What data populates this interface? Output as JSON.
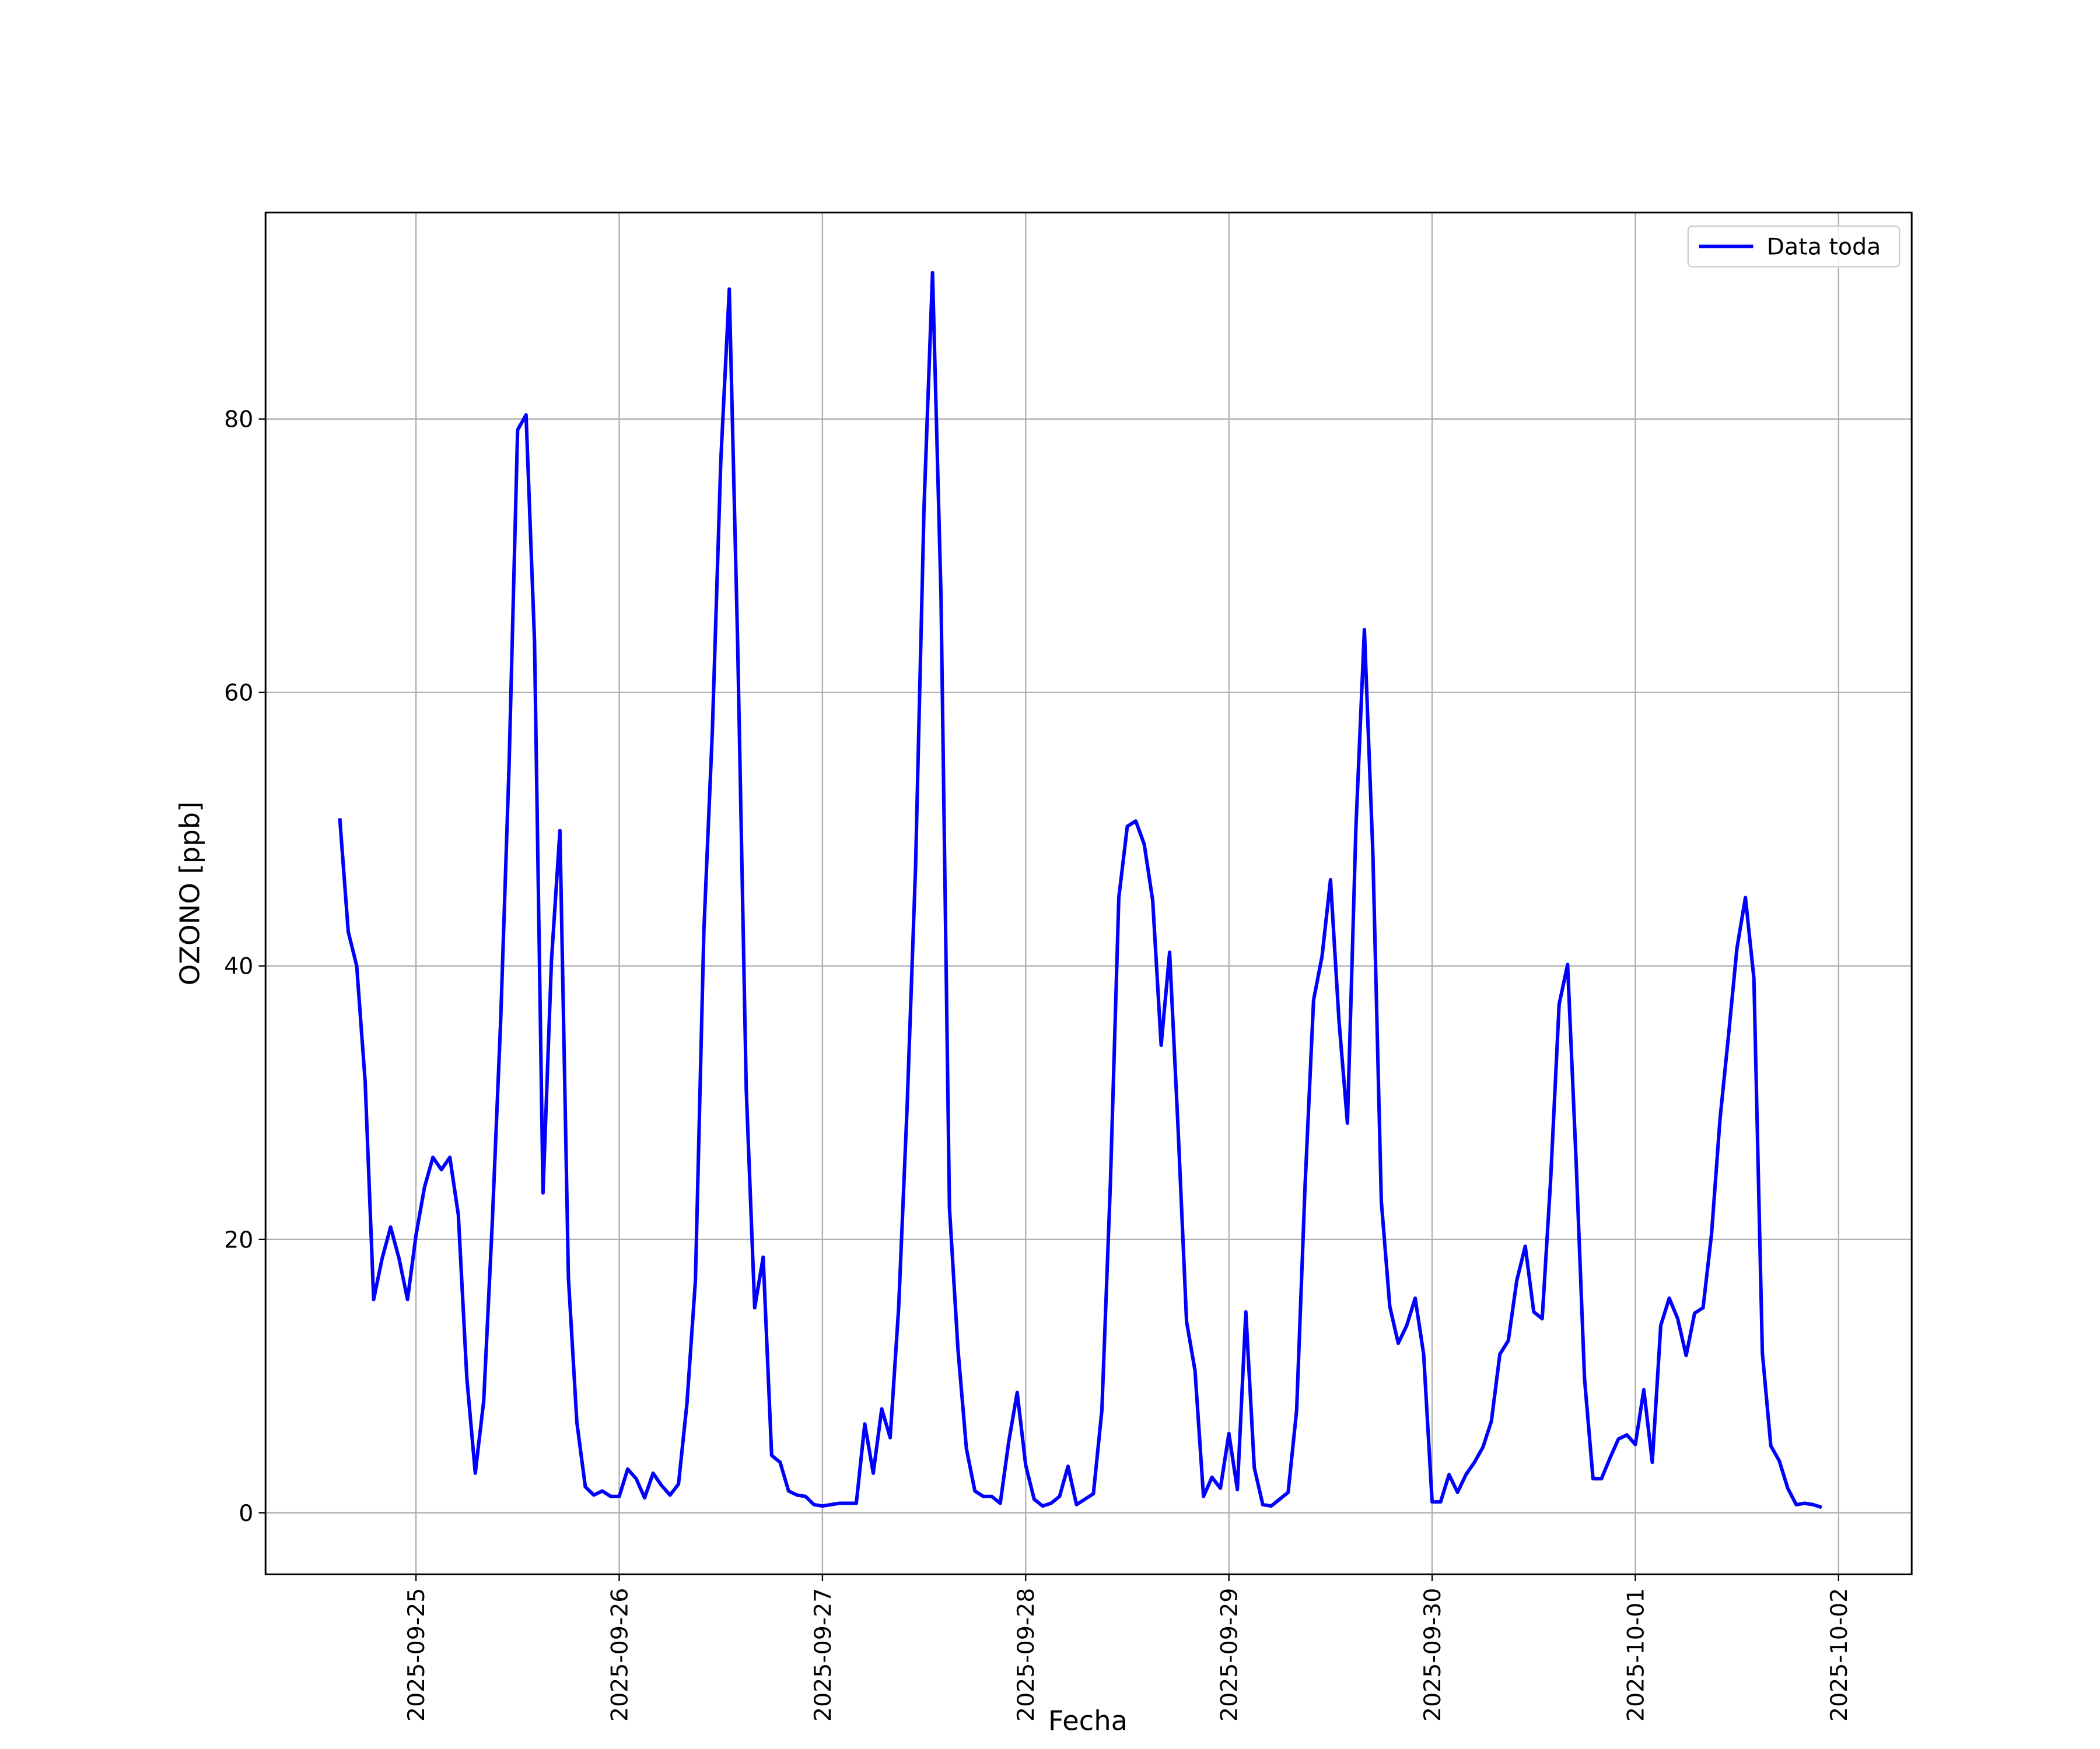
{
  "chart_data": {
    "type": "line",
    "x_label": "Fecha",
    "y_label": "OZONO [ppb]",
    "grid": true,
    "legend": "upper right",
    "xlim": [
      "2025-09-24T06:14Z",
      "2025-10-02T08:38Z"
    ],
    "xticks": [
      "2025-09-25",
      "2025-09-26",
      "2025-09-27",
      "2025-09-28",
      "2025-09-29",
      "2025-09-30",
      "2025-10-01",
      "2025-10-02"
    ],
    "ylim": [
      -4.5,
      95.1
    ],
    "yticks": [
      0,
      20,
      40,
      60,
      80
    ],
    "x": [
      "2025-09-24T15:00Z",
      "2025-09-24T16:00Z",
      "2025-09-24T17:00Z",
      "2025-09-24T18:00Z",
      "2025-09-24T19:00Z",
      "2025-09-24T20:00Z",
      "2025-09-24T21:00Z",
      "2025-09-24T22:00Z",
      "2025-09-24T23:00Z",
      "2025-09-25T00:00Z",
      "2025-09-25T01:00Z",
      "2025-09-25T02:00Z",
      "2025-09-25T03:00Z",
      "2025-09-25T04:00Z",
      "2025-09-25T05:00Z",
      "2025-09-25T06:00Z",
      "2025-09-25T07:00Z",
      "2025-09-25T08:00Z",
      "2025-09-25T09:00Z",
      "2025-09-25T10:00Z",
      "2025-09-25T11:00Z",
      "2025-09-25T12:00Z",
      "2025-09-25T13:00Z",
      "2025-09-25T14:00Z",
      "2025-09-25T15:00Z",
      "2025-09-25T16:00Z",
      "2025-09-25T17:00Z",
      "2025-09-25T18:00Z",
      "2025-09-25T19:00Z",
      "2025-09-25T20:00Z",
      "2025-09-25T21:00Z",
      "2025-09-25T22:00Z",
      "2025-09-25T23:00Z",
      "2025-09-26T00:00Z",
      "2025-09-26T01:00Z",
      "2025-09-26T02:00Z",
      "2025-09-26T03:00Z",
      "2025-09-26T04:00Z",
      "2025-09-26T05:00Z",
      "2025-09-26T06:00Z",
      "2025-09-26T07:00Z",
      "2025-09-26T08:00Z",
      "2025-09-26T09:00Z",
      "2025-09-26T10:00Z",
      "2025-09-26T11:00Z",
      "2025-09-26T12:00Z",
      "2025-09-26T13:00Z",
      "2025-09-26T14:00Z",
      "2025-09-26T15:00Z",
      "2025-09-26T16:00Z",
      "2025-09-26T17:00Z",
      "2025-09-26T18:00Z",
      "2025-09-26T19:00Z",
      "2025-09-26T20:00Z",
      "2025-09-26T21:00Z",
      "2025-09-26T22:00Z",
      "2025-09-26T23:00Z",
      "2025-09-27T00:00Z",
      "2025-09-27T01:00Z",
      "2025-09-27T02:00Z",
      "2025-09-27T03:00Z",
      "2025-09-27T04:00Z",
      "2025-09-27T05:00Z",
      "2025-09-27T06:00Z",
      "2025-09-27T07:00Z",
      "2025-09-27T08:00Z",
      "2025-09-27T09:00Z",
      "2025-09-27T10:00Z",
      "2025-09-27T11:00Z",
      "2025-09-27T12:00Z",
      "2025-09-27T13:00Z",
      "2025-09-27T14:00Z",
      "2025-09-27T15:00Z",
      "2025-09-27T16:00Z",
      "2025-09-27T17:00Z",
      "2025-09-27T18:00Z",
      "2025-09-27T19:00Z",
      "2025-09-27T20:00Z",
      "2025-09-27T21:00Z",
      "2025-09-27T22:00Z",
      "2025-09-27T23:00Z",
      "2025-09-28T00:00Z",
      "2025-09-28T01:00Z",
      "2025-09-28T02:00Z",
      "2025-09-28T03:00Z",
      "2025-09-28T04:00Z",
      "2025-09-28T05:00Z",
      "2025-09-28T06:00Z",
      "2025-09-28T07:00Z",
      "2025-09-28T08:00Z",
      "2025-09-28T09:00Z",
      "2025-09-28T10:00Z",
      "2025-09-28T11:00Z",
      "2025-09-28T12:00Z",
      "2025-09-28T13:00Z",
      "2025-09-28T14:00Z",
      "2025-09-28T15:00Z",
      "2025-09-28T16:00Z",
      "2025-09-28T17:00Z",
      "2025-09-28T18:00Z",
      "2025-09-28T19:00Z",
      "2025-09-28T20:00Z",
      "2025-09-28T21:00Z",
      "2025-09-28T22:00Z",
      "2025-09-28T23:00Z",
      "2025-09-29T00:00Z",
      "2025-09-29T01:00Z",
      "2025-09-29T02:00Z",
      "2025-09-29T03:00Z",
      "2025-09-29T04:00Z",
      "2025-09-29T05:00Z",
      "2025-09-29T06:00Z",
      "2025-09-29T07:00Z",
      "2025-09-29T08:00Z",
      "2025-09-29T09:00Z",
      "2025-09-29T10:00Z",
      "2025-09-29T11:00Z",
      "2025-09-29T12:00Z",
      "2025-09-29T13:00Z",
      "2025-09-29T14:00Z",
      "2025-09-29T15:00Z",
      "2025-09-29T16:00Z",
      "2025-09-29T17:00Z",
      "2025-09-29T18:00Z",
      "2025-09-29T19:00Z",
      "2025-09-29T20:00Z",
      "2025-09-29T21:00Z",
      "2025-09-29T22:00Z",
      "2025-09-29T23:00Z",
      "2025-09-30T00:00Z",
      "2025-09-30T01:00Z",
      "2025-09-30T02:00Z",
      "2025-09-30T03:00Z",
      "2025-09-30T04:00Z",
      "2025-09-30T05:00Z",
      "2025-09-30T06:00Z",
      "2025-09-30T07:00Z",
      "2025-09-30T08:00Z",
      "2025-09-30T09:00Z",
      "2025-09-30T10:00Z",
      "2025-09-30T11:00Z",
      "2025-09-30T12:00Z",
      "2025-09-30T13:00Z",
      "2025-09-30T14:00Z",
      "2025-09-30T15:00Z",
      "2025-09-30T16:00Z",
      "2025-09-30T17:00Z",
      "2025-09-30T18:00Z",
      "2025-09-30T19:00Z",
      "2025-09-30T20:00Z",
      "2025-09-30T21:00Z",
      "2025-09-30T22:00Z",
      "2025-09-30T23:00Z",
      "2025-10-01T00:00Z",
      "2025-10-01T01:00Z",
      "2025-10-01T02:00Z",
      "2025-10-01T03:00Z",
      "2025-10-01T04:00Z",
      "2025-10-01T05:00Z",
      "2025-10-01T06:00Z",
      "2025-10-01T07:00Z",
      "2025-10-01T08:00Z",
      "2025-10-01T09:00Z",
      "2025-10-01T10:00Z",
      "2025-10-01T11:00Z",
      "2025-10-01T12:00Z",
      "2025-10-01T13:00Z",
      "2025-10-01T14:00Z",
      "2025-10-01T15:00Z",
      "2025-10-01T16:00Z",
      "2025-10-01T17:00Z",
      "2025-10-01T18:00Z",
      "2025-10-01T19:00Z",
      "2025-10-01T20:00Z",
      "2025-10-01T21:00Z",
      "2025-10-01T22:00Z"
    ],
    "series": [
      {
        "name": "Data toda",
        "color": "#0000ff",
        "values": [
          50.8,
          42.5,
          40,
          31.5,
          15.6,
          18.6,
          20.9,
          18.6,
          15.6,
          20.3,
          23.8,
          26,
          25.1,
          26,
          21.8,
          9.9,
          2.9,
          8.2,
          21.1,
          36,
          54.8,
          79.2,
          80.3,
          63.7,
          23.4,
          40.4,
          49.9,
          17.2,
          6.6,
          1.9,
          1.3,
          1.6,
          1.2,
          1.2,
          3.2,
          2.5,
          1.1,
          2.9,
          2,
          1.3,
          2.1,
          8,
          17,
          42.6,
          57.2,
          77,
          89.5,
          63.2,
          31,
          15,
          18.7,
          4.2,
          3.7,
          1.6,
          1.3,
          1.2,
          0.6,
          0.5,
          0.6,
          0.7,
          0.7,
          0.7,
          6.5,
          2.9,
          7.6,
          5.5,
          15,
          29.7,
          47.3,
          73.6,
          90.7,
          67.1,
          22.3,
          12,
          4.7,
          1.6,
          1.2,
          1.2,
          0.7,
          5.2,
          8.8,
          3.5,
          1,
          0.5,
          0.7,
          1.2,
          3.4,
          0.6,
          1,
          1.4,
          7.5,
          24,
          45,
          50.2,
          50.6,
          48.9,
          44.8,
          34.2,
          41,
          28.1,
          14,
          10.4,
          1.2,
          2.6,
          1.8,
          5.8,
          1.7,
          14.7,
          3.3,
          0.6,
          0.5,
          1,
          1.5,
          7.5,
          24,
          37.5,
          40.7,
          46.3,
          36,
          28.5,
          50.1,
          64.6,
          48.3,
          22.8,
          15.1,
          12.4,
          13.7,
          15.7,
          11.6,
          0.8,
          0.8,
          2.8,
          1.5,
          2.8,
          3.7,
          4.8,
          6.7,
          11.6,
          12.6,
          17,
          19.5,
          14.7,
          14.2,
          24.4,
          37.2,
          40.1,
          25.8,
          9.8,
          2.5,
          2.5,
          4,
          5.4,
          5.7,
          5,
          9,
          3.7,
          13.7,
          15.7,
          14.2,
          11.5,
          14.6,
          15,
          20.4,
          28.8,
          34.9,
          41.3,
          45,
          39.1,
          11.7,
          4.9,
          3.8,
          1.8,
          0.6,
          0.7,
          0.6,
          0.4
        ]
      }
    ]
  }
}
